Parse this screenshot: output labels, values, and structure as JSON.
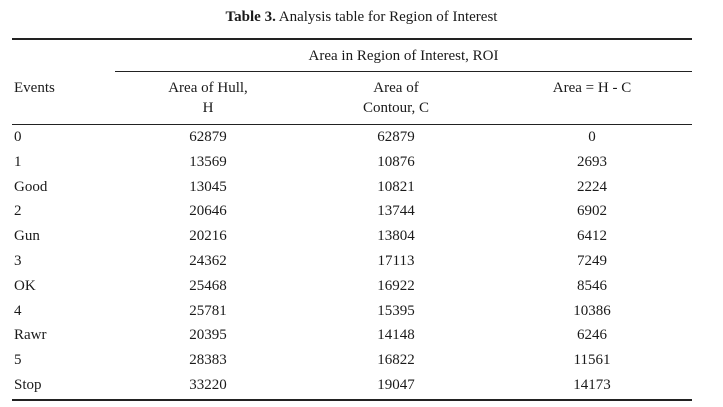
{
  "caption": {
    "label": "Table 3.",
    "text": " Analysis table for Region of Interest"
  },
  "table": {
    "group_header": "Area in Region of Interest, ROI",
    "columns": {
      "events": "Events",
      "hull_line1": "Area of Hull,",
      "hull_line2": "H",
      "contour_line1": "Area of",
      "contour_line2": "Contour, C",
      "diff": "Area = H - C"
    },
    "rows": [
      {
        "event": "0",
        "hull": "62879",
        "contour": "62879",
        "diff": "0"
      },
      {
        "event": "1",
        "hull": "13569",
        "contour": "10876",
        "diff": "2693"
      },
      {
        "event": "Good",
        "hull": "13045",
        "contour": "10821",
        "diff": "2224"
      },
      {
        "event": "2",
        "hull": "20646",
        "contour": "13744",
        "diff": "6902"
      },
      {
        "event": "Gun",
        "hull": "20216",
        "contour": "13804",
        "diff": "6412"
      },
      {
        "event": "3",
        "hull": "24362",
        "contour": "17113",
        "diff": "7249"
      },
      {
        "event": "OK",
        "hull": "25468",
        "contour": "16922",
        "diff": "8546"
      },
      {
        "event": "4",
        "hull": "25781",
        "contour": "15395",
        "diff": "10386"
      },
      {
        "event": "Rawr",
        "hull": "20395",
        "contour": "14148",
        "diff": "6246"
      },
      {
        "event": "5",
        "hull": "28383",
        "contour": "16822",
        "diff": "11561"
      },
      {
        "event": "Stop",
        "hull": "33220",
        "contour": "19047",
        "diff": "14173"
      }
    ]
  }
}
